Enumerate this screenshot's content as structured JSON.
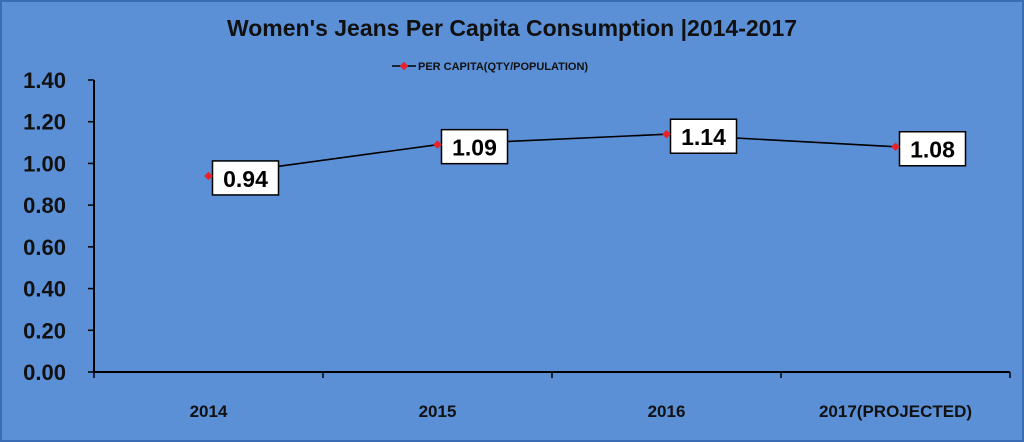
{
  "chart_data": {
    "type": "line",
    "title": "Women's Jeans Per Capita Consumption  |2014-2017",
    "categories": [
      "2014",
      "2015",
      "2016",
      "2017(PROJECTED)"
    ],
    "series": [
      {
        "name": "PER CAPITA(QTY/POPULATION)",
        "values": [
          0.94,
          1.09,
          1.14,
          1.08
        ],
        "labels": [
          "0.94",
          "1.09",
          "1.14",
          "1.08"
        ]
      }
    ],
    "yticks": [
      "0.00",
      "0.20",
      "0.40",
      "0.60",
      "0.80",
      "1.00",
      "1.20",
      "1.40"
    ],
    "ylim": [
      0,
      1.4
    ],
    "xlabel": "",
    "ylabel": "",
    "grid": false,
    "legend": "top-center"
  },
  "colors": {
    "background": "#5b8fd6",
    "line": "#000000",
    "marker": "#e8212a",
    "label_box": "#ffffff",
    "border": "#3a6cb5"
  }
}
